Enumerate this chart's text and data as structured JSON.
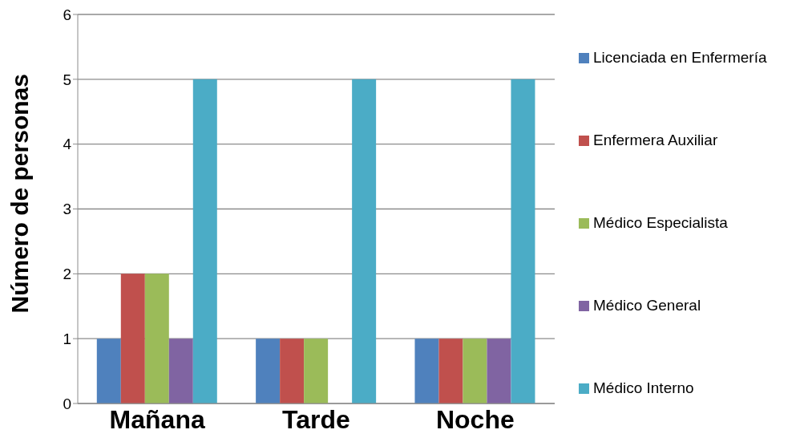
{
  "chart_data": {
    "type": "bar",
    "ylabel": "Número de personas",
    "categories": [
      "Mañana",
      "Tarde",
      "Noche"
    ],
    "series": [
      {
        "name": "Licenciada en Enfermería",
        "color": "#4f81bd",
        "values": [
          1,
          1,
          1
        ]
      },
      {
        "name": "Enfermera Auxiliar",
        "color": "#c0504d",
        "values": [
          2,
          1,
          1
        ]
      },
      {
        "name": "Médico Especialista",
        "color": "#9bbb59",
        "values": [
          2,
          1,
          1
        ]
      },
      {
        "name": "Médico General",
        "color": "#8064a2",
        "values": [
          1,
          0,
          1
        ]
      },
      {
        "name": "Médico Interno",
        "color": "#4bacc6",
        "values": [
          5,
          5,
          5
        ]
      }
    ],
    "ylim": [
      0,
      6
    ],
    "yticks": [
      0,
      1,
      2,
      3,
      4,
      5,
      6
    ],
    "grid": "y",
    "legend": "right"
  }
}
